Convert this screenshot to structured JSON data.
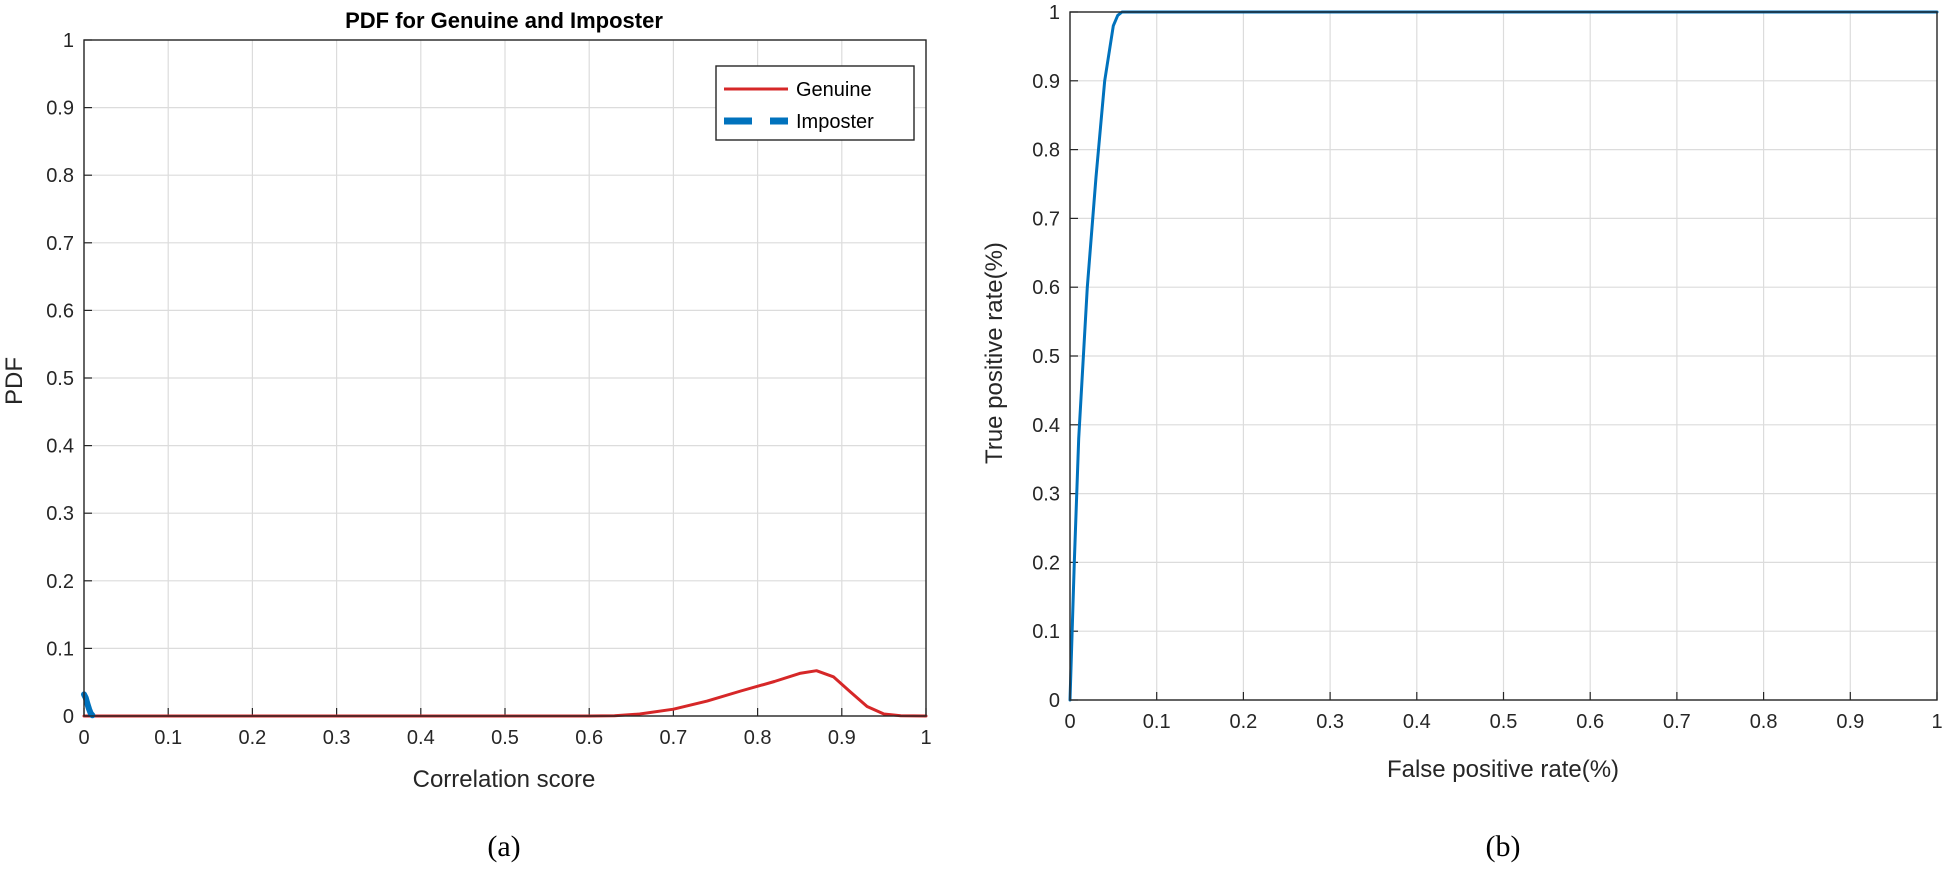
{
  "chart_data": [
    {
      "type": "line",
      "panel": "(a)",
      "title": "PDF for Genuine and Imposter",
      "xlabel": "Correlation score",
      "ylabel": "PDF",
      "xlim": [
        0,
        1
      ],
      "ylim": [
        0,
        1
      ],
      "xticks": [
        "0",
        "0.1",
        "0.2",
        "0.3",
        "0.4",
        "0.5",
        "0.6",
        "0.7",
        "0.8",
        "0.9",
        "1"
      ],
      "yticks": [
        "0",
        "0.1",
        "0.2",
        "0.3",
        "0.4",
        "0.5",
        "0.6",
        "0.7",
        "0.8",
        "0.9",
        "1"
      ],
      "grid": true,
      "legend_position": "top-right",
      "series": [
        {
          "name": "Genuine",
          "color": "#d62728",
          "style": "solid",
          "x": [
            0,
            0.6,
            0.63,
            0.66,
            0.7,
            0.74,
            0.78,
            0.82,
            0.85,
            0.87,
            0.89,
            0.91,
            0.93,
            0.95,
            0.97,
            1.0
          ],
          "y": [
            0,
            0,
            0.0005,
            0.003,
            0.01,
            0.022,
            0.037,
            0.051,
            0.063,
            0.067,
            0.058,
            0.036,
            0.014,
            0.003,
            0.0005,
            0
          ]
        },
        {
          "name": "Imposter",
          "color": "#0072bd",
          "style": "dashed",
          "x": [
            0,
            0.002,
            0.004,
            0.006,
            0.008,
            0.01
          ],
          "y": [
            0.032,
            0.027,
            0.018,
            0.01,
            0.004,
            0.001
          ]
        }
      ]
    },
    {
      "type": "line",
      "panel": "(b)",
      "title": "",
      "xlabel": "False positive rate(%)",
      "ylabel": "True positive rate(%)",
      "xlim": [
        0,
        1
      ],
      "ylim": [
        0,
        1
      ],
      "xticks": [
        "0",
        "0.1",
        "0.2",
        "0.3",
        "0.4",
        "0.5",
        "0.6",
        "0.7",
        "0.8",
        "0.9",
        "1"
      ],
      "yticks": [
        "0",
        "0.1",
        "0.2",
        "0.3",
        "0.4",
        "0.5",
        "0.6",
        "0.7",
        "0.8",
        "0.9",
        "1"
      ],
      "grid": true,
      "series": [
        {
          "color": "#0072bd",
          "style": "solid",
          "x": [
            0,
            0.005,
            0.01,
            0.02,
            0.03,
            0.04,
            0.05,
            0.055,
            0.06,
            0.07,
            1.0
          ],
          "y": [
            0,
            0.2,
            0.38,
            0.6,
            0.76,
            0.9,
            0.98,
            0.995,
            1.0,
            1.0,
            1.0
          ]
        }
      ]
    }
  ],
  "captions": {
    "a": "(a)",
    "b": "(b)"
  }
}
